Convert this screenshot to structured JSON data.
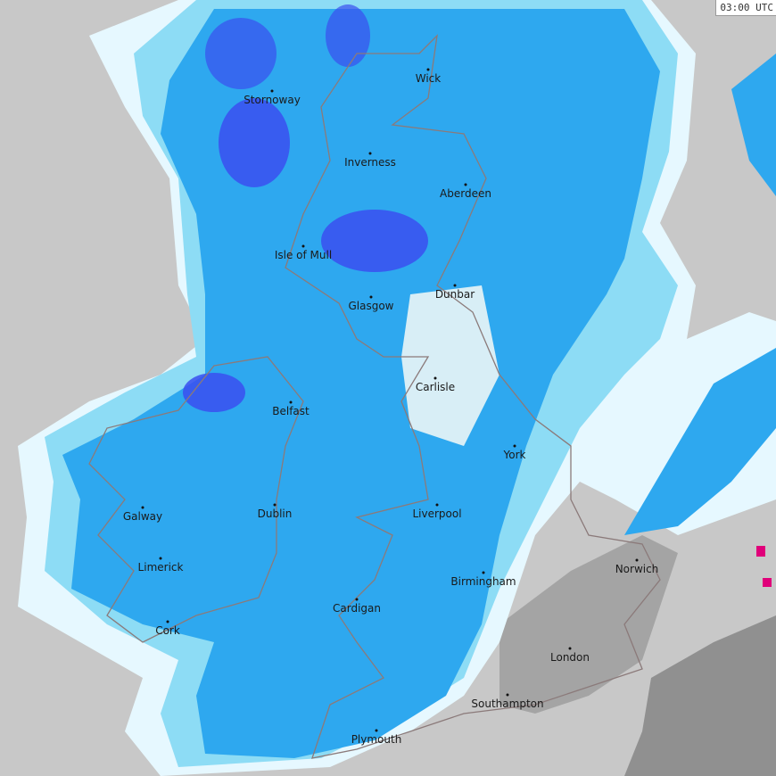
{
  "timestamp": "03:00 UTC",
  "colors": {
    "background": "#c8c8c8",
    "land_no_rain": "#a8a8a8",
    "light_rain": "#e6f8ff",
    "rain_light_blue": "#8ddcf5",
    "rain_medium_blue": "#2ea8ef",
    "rain_heavy": "#3a4ff0",
    "rain_very_heavy": "#e0007a",
    "coastline": "#8b7a7a"
  },
  "cities": [
    {
      "name": "Stornoway"
    },
    {
      "name": "Wick"
    },
    {
      "name": "Inverness"
    },
    {
      "name": "Aberdeen"
    },
    {
      "name": "Isle of Mull"
    },
    {
      "name": "Dunbar"
    },
    {
      "name": "Glasgow"
    },
    {
      "name": "Carlisle"
    },
    {
      "name": "Belfast"
    },
    {
      "name": "York"
    },
    {
      "name": "Galway"
    },
    {
      "name": "Dublin"
    },
    {
      "name": "Liverpool"
    },
    {
      "name": "Limerick"
    },
    {
      "name": "Norwich"
    },
    {
      "name": "Birmingham"
    },
    {
      "name": "Cardigan"
    },
    {
      "name": "Cork"
    },
    {
      "name": "London"
    },
    {
      "name": "Southampton"
    },
    {
      "name": "Plymouth"
    }
  ]
}
